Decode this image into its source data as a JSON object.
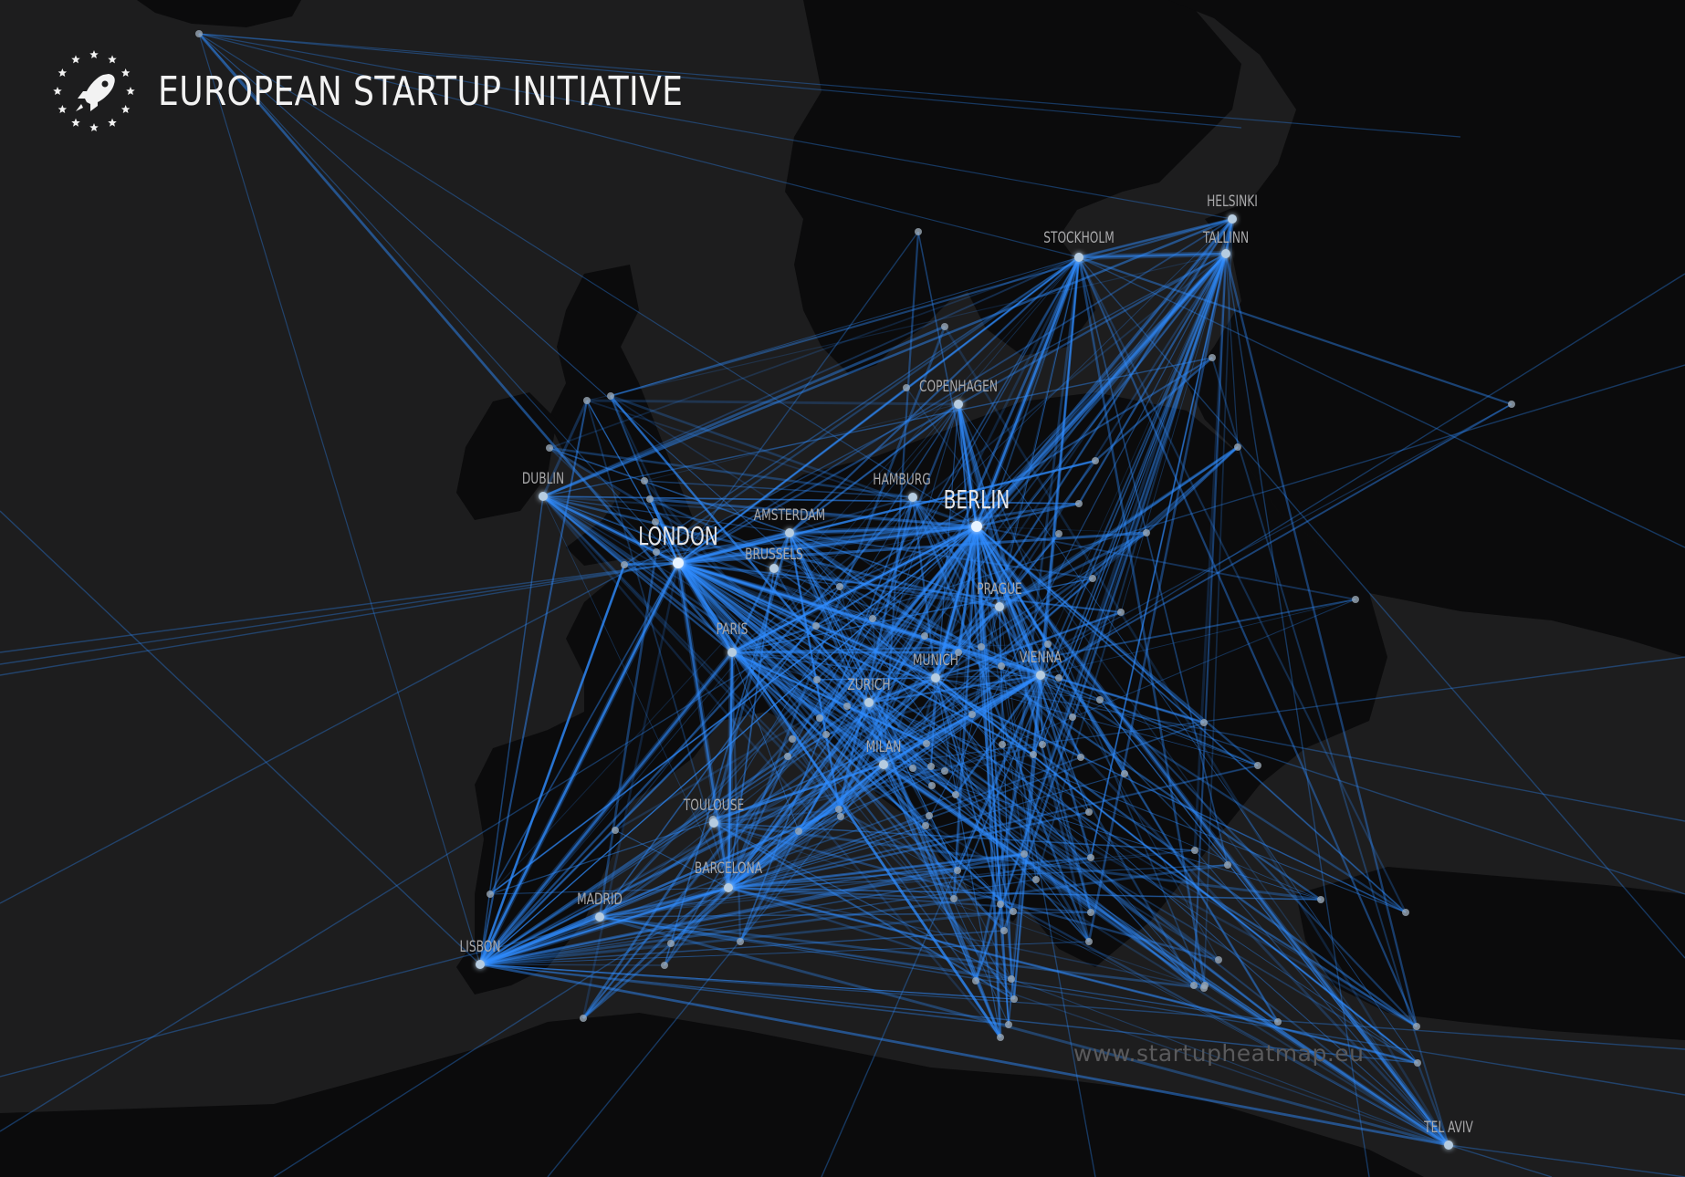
{
  "header": {
    "title": "EUROPEAN STARTUP INITIATIVE",
    "logo_icon": "rocket-stars-icon"
  },
  "watermark": "www.startupheatmap.eu",
  "colors": {
    "background": "#1d1d1e",
    "land": "#0b0b0c",
    "connection": "#2f8cff",
    "node": "#9aa7b5",
    "label": "#a9a9ab"
  },
  "cities": [
    {
      "id": "london",
      "label": "LONDON",
      "major": true
    },
    {
      "id": "berlin",
      "label": "BERLIN",
      "major": true
    },
    {
      "id": "paris",
      "label": "PARIS"
    },
    {
      "id": "amsterdam",
      "label": "AMSTERDAM"
    },
    {
      "id": "brussels",
      "label": "BRUSSELS"
    },
    {
      "id": "dublin",
      "label": "DUBLIN"
    },
    {
      "id": "hamburg",
      "label": "HAMBURG"
    },
    {
      "id": "copenhagen",
      "label": "COPENHAGEN"
    },
    {
      "id": "stockholm",
      "label": "STOCKHOLM"
    },
    {
      "id": "helsinki",
      "label": "HELSINKI"
    },
    {
      "id": "tallinn",
      "label": "TALLINN"
    },
    {
      "id": "prague",
      "label": "PRAGUE"
    },
    {
      "id": "munich",
      "label": "MUNICH"
    },
    {
      "id": "vienna",
      "label": "VIENNA"
    },
    {
      "id": "zurich",
      "label": "ZURICH"
    },
    {
      "id": "milan",
      "label": "MILAN"
    },
    {
      "id": "toulouse",
      "label": "TOULOUSE"
    },
    {
      "id": "barcelona",
      "label": "BARCELONA"
    },
    {
      "id": "madrid",
      "label": "MADRID"
    },
    {
      "id": "lisbon",
      "label": "LISBON"
    },
    {
      "id": "telaviv",
      "label": "TEL AVIV"
    }
  ]
}
